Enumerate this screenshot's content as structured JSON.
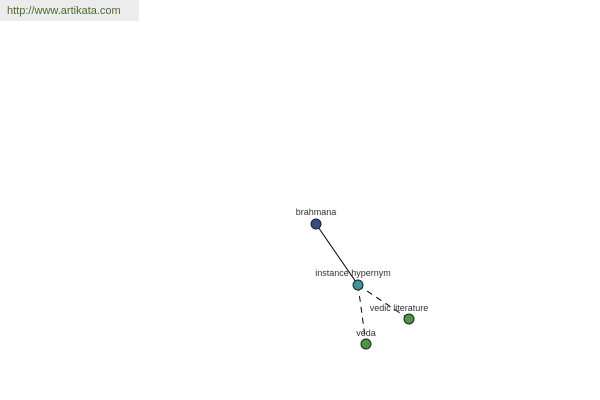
{
  "watermark": "http://www.artikata.com",
  "graph": {
    "nodes": [
      {
        "id": "brahmana",
        "label": "brahmana",
        "color": "#3b4a8c"
      },
      {
        "id": "instance-hypernym",
        "label": "instance hypernym",
        "color": "#3c9696"
      },
      {
        "id": "vedic-literature",
        "label": "vedic literature",
        "color": "#4a9646"
      },
      {
        "id": "veda",
        "label": "veda",
        "color": "#4a9646"
      }
    ],
    "edges": [
      {
        "from": "brahmana",
        "to": "instance-hypernym",
        "style": "solid"
      },
      {
        "from": "instance-hypernym",
        "to": "vedic-literature",
        "style": "dashed"
      },
      {
        "from": "instance-hypernym",
        "to": "veda",
        "style": "dashed"
      }
    ]
  }
}
